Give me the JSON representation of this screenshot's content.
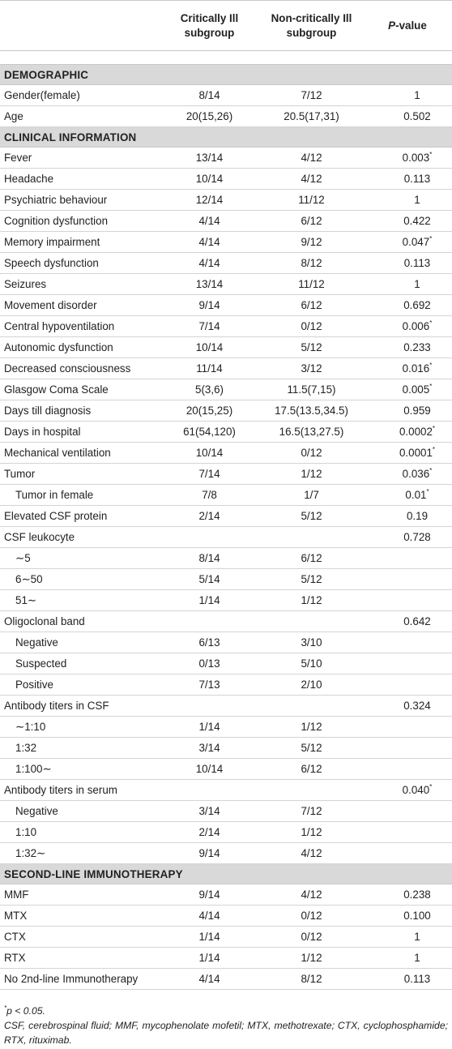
{
  "columns": {
    "variable": "",
    "critically_ill": "Critically Ill subgroup",
    "non_critically_ill": "Non-critically Ill subgroup",
    "p_prefix": "P",
    "p_suffix": "-value"
  },
  "sections": [
    {
      "title": "DEMOGRAPHIC",
      "rows": [
        {
          "label": "Gender(female)",
          "critical": "8/14",
          "noncritical": "7/12",
          "p": "1",
          "sig": false,
          "sub": false
        },
        {
          "label": "Age",
          "critical": "20(15,26)",
          "noncritical": "20.5(17,31)",
          "p": "0.502",
          "sig": false,
          "sub": false
        }
      ]
    },
    {
      "title": "CLINICAL INFORMATION",
      "rows": [
        {
          "label": "Fever",
          "critical": "13/14",
          "noncritical": "4/12",
          "p": "0.003",
          "sig": true,
          "sub": false
        },
        {
          "label": "Headache",
          "critical": "10/14",
          "noncritical": "4/12",
          "p": "0.113",
          "sig": false,
          "sub": false
        },
        {
          "label": "Psychiatric behaviour",
          "critical": "12/14",
          "noncritical": "11/12",
          "p": "1",
          "sig": false,
          "sub": false
        },
        {
          "label": "Cognition dysfunction",
          "critical": "4/14",
          "noncritical": "6/12",
          "p": "0.422",
          "sig": false,
          "sub": false
        },
        {
          "label": "Memory impairment",
          "critical": "4/14",
          "noncritical": "9/12",
          "p": "0.047",
          "sig": true,
          "sub": false
        },
        {
          "label": "Speech dysfunction",
          "critical": "4/14",
          "noncritical": "8/12",
          "p": "0.113",
          "sig": false,
          "sub": false
        },
        {
          "label": "Seizures",
          "critical": "13/14",
          "noncritical": "11/12",
          "p": "1",
          "sig": false,
          "sub": false
        },
        {
          "label": "Movement disorder",
          "critical": "9/14",
          "noncritical": "6/12",
          "p": "0.692",
          "sig": false,
          "sub": false
        },
        {
          "label": "Central hypoventilation",
          "critical": "7/14",
          "noncritical": "0/12",
          "p": "0.006",
          "sig": true,
          "sub": false
        },
        {
          "label": "Autonomic dysfunction",
          "critical": "10/14",
          "noncritical": "5/12",
          "p": "0.233",
          "sig": false,
          "sub": false
        },
        {
          "label": "Decreased consciousness",
          "critical": "11/14",
          "noncritical": "3/12",
          "p": "0.016",
          "sig": true,
          "sub": false
        },
        {
          "label": "Glasgow Coma Scale",
          "critical": "5(3,6)",
          "noncritical": "11.5(7,15)",
          "p": "0.005",
          "sig": true,
          "sub": false
        },
        {
          "label": "Days till diagnosis",
          "critical": "20(15,25)",
          "noncritical": "17.5(13.5,34.5)",
          "p": "0.959",
          "sig": false,
          "sub": false
        },
        {
          "label": "Days in hospital",
          "critical": "61(54,120)",
          "noncritical": "16.5(13,27.5)",
          "p": "0.0002",
          "sig": true,
          "sub": false
        },
        {
          "label": "Mechanical ventilation",
          "critical": "10/14",
          "noncritical": "0/12",
          "p": "0.0001",
          "sig": true,
          "sub": false
        },
        {
          "label": "Tumor",
          "critical": "7/14",
          "noncritical": "1/12",
          "p": "0.036",
          "sig": true,
          "sub": false
        },
        {
          "label": "Tumor in female",
          "critical": "7/8",
          "noncritical": "1/7",
          "p": "0.01",
          "sig": true,
          "sub": true
        },
        {
          "label": "Elevated CSF protein",
          "critical": "2/14",
          "noncritical": "5/12",
          "p": "0.19",
          "sig": false,
          "sub": false
        },
        {
          "label": "CSF leukocyte",
          "critical": "",
          "noncritical": "",
          "p": "0.728",
          "sig": false,
          "sub": false
        },
        {
          "label": "∼5",
          "critical": "8/14",
          "noncritical": "6/12",
          "p": "",
          "sig": false,
          "sub": true
        },
        {
          "label": "6∼50",
          "critical": "5/14",
          "noncritical": "5/12",
          "p": "",
          "sig": false,
          "sub": true
        },
        {
          "label": "51∼",
          "critical": "1/14",
          "noncritical": "1/12",
          "p": "",
          "sig": false,
          "sub": true
        },
        {
          "label": "Oligoclonal band",
          "critical": "",
          "noncritical": "",
          "p": "0.642",
          "sig": false,
          "sub": false
        },
        {
          "label": "Negative",
          "critical": "6/13",
          "noncritical": "3/10",
          "p": "",
          "sig": false,
          "sub": true
        },
        {
          "label": "Suspected",
          "critical": "0/13",
          "noncritical": "5/10",
          "p": "",
          "sig": false,
          "sub": true
        },
        {
          "label": "Positive",
          "critical": "7/13",
          "noncritical": "2/10",
          "p": "",
          "sig": false,
          "sub": true
        },
        {
          "label": "Antibody titers in CSF",
          "critical": "",
          "noncritical": "",
          "p": "0.324",
          "sig": false,
          "sub": false
        },
        {
          "label": "∼1:10",
          "critical": "1/14",
          "noncritical": "1/12",
          "p": "",
          "sig": false,
          "sub": true
        },
        {
          "label": "1:32",
          "critical": "3/14",
          "noncritical": "5/12",
          "p": "",
          "sig": false,
          "sub": true
        },
        {
          "label": "1:100∼",
          "critical": "10/14",
          "noncritical": "6/12",
          "p": "",
          "sig": false,
          "sub": true
        },
        {
          "label": "Antibody titers in serum",
          "critical": "",
          "noncritical": "",
          "p": "0.040",
          "sig": true,
          "sub": false
        },
        {
          "label": "Negative",
          "critical": "3/14",
          "noncritical": "7/12",
          "p": "",
          "sig": false,
          "sub": true
        },
        {
          "label": "1:10",
          "critical": "2/14",
          "noncritical": "1/12",
          "p": "",
          "sig": false,
          "sub": true
        },
        {
          "label": "1:32∼",
          "critical": "9/14",
          "noncritical": "4/12",
          "p": "",
          "sig": false,
          "sub": true
        }
      ]
    },
    {
      "title": "SECOND-LINE IMMUNOTHERAPY",
      "rows": [
        {
          "label": "MMF",
          "critical": "9/14",
          "noncritical": "4/12",
          "p": "0.238",
          "sig": false,
          "sub": false
        },
        {
          "label": "MTX",
          "critical": "4/14",
          "noncritical": "0/12",
          "p": "0.100",
          "sig": false,
          "sub": false
        },
        {
          "label": "CTX",
          "critical": "1/14",
          "noncritical": "0/12",
          "p": "1",
          "sig": false,
          "sub": false
        },
        {
          "label": "RTX",
          "critical": "1/14",
          "noncritical": "1/12",
          "p": "1",
          "sig": false,
          "sub": false
        },
        {
          "label": "No 2nd-line Immunotherapy",
          "critical": "4/14",
          "noncritical": "8/12",
          "p": "0.113",
          "sig": false,
          "sub": false
        }
      ]
    }
  ],
  "significance_mark": "*",
  "footnotes": {
    "significance": "p < 0.05.",
    "abbreviations": "CSF, cerebrospinal fluid; MMF, mycophenolate mofetil; MTX, methotrexate; CTX, cyclophosphamide; RTX, rituximab."
  }
}
